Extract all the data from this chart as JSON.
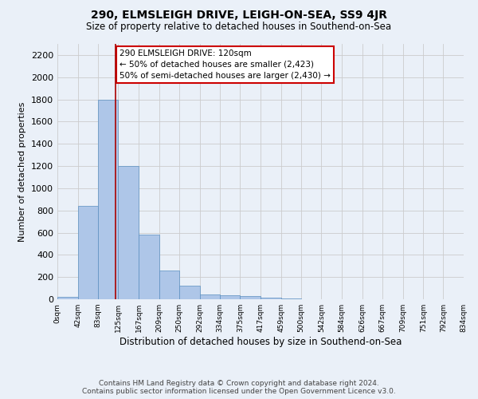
{
  "title1": "290, ELMSLEIGH DRIVE, LEIGH-ON-SEA, SS9 4JR",
  "title2": "Size of property relative to detached houses in Southend-on-Sea",
  "xlabel": "Distribution of detached houses by size in Southend-on-Sea",
  "ylabel": "Number of detached properties",
  "footer1": "Contains HM Land Registry data © Crown copyright and database right 2024.",
  "footer2": "Contains public sector information licensed under the Open Government Licence v3.0.",
  "bin_edges": [
    0,
    42,
    83,
    125,
    167,
    209,
    250,
    292,
    334,
    375,
    417,
    459,
    500,
    542,
    584,
    626,
    667,
    709,
    751,
    792,
    834
  ],
  "bar_heights": [
    25,
    840,
    1800,
    1200,
    580,
    260,
    120,
    45,
    35,
    30,
    15,
    5,
    3,
    2,
    1,
    1,
    0,
    0,
    0,
    0
  ],
  "bar_color": "#aec6e8",
  "bar_edge_color": "#5a8fc0",
  "grid_color": "#cccccc",
  "bg_color": "#eaf0f8",
  "red_line_x": 120,
  "red_line_color": "#aa0000",
  "annotation_text": "290 ELMSLEIGH DRIVE: 120sqm\n← 50% of detached houses are smaller (2,423)\n50% of semi-detached houses are larger (2,430) →",
  "annotation_box_color": "#cc0000",
  "ylim": [
    0,
    2300
  ],
  "yticks": [
    0,
    200,
    400,
    600,
    800,
    1000,
    1200,
    1400,
    1600,
    1800,
    2000,
    2200
  ]
}
